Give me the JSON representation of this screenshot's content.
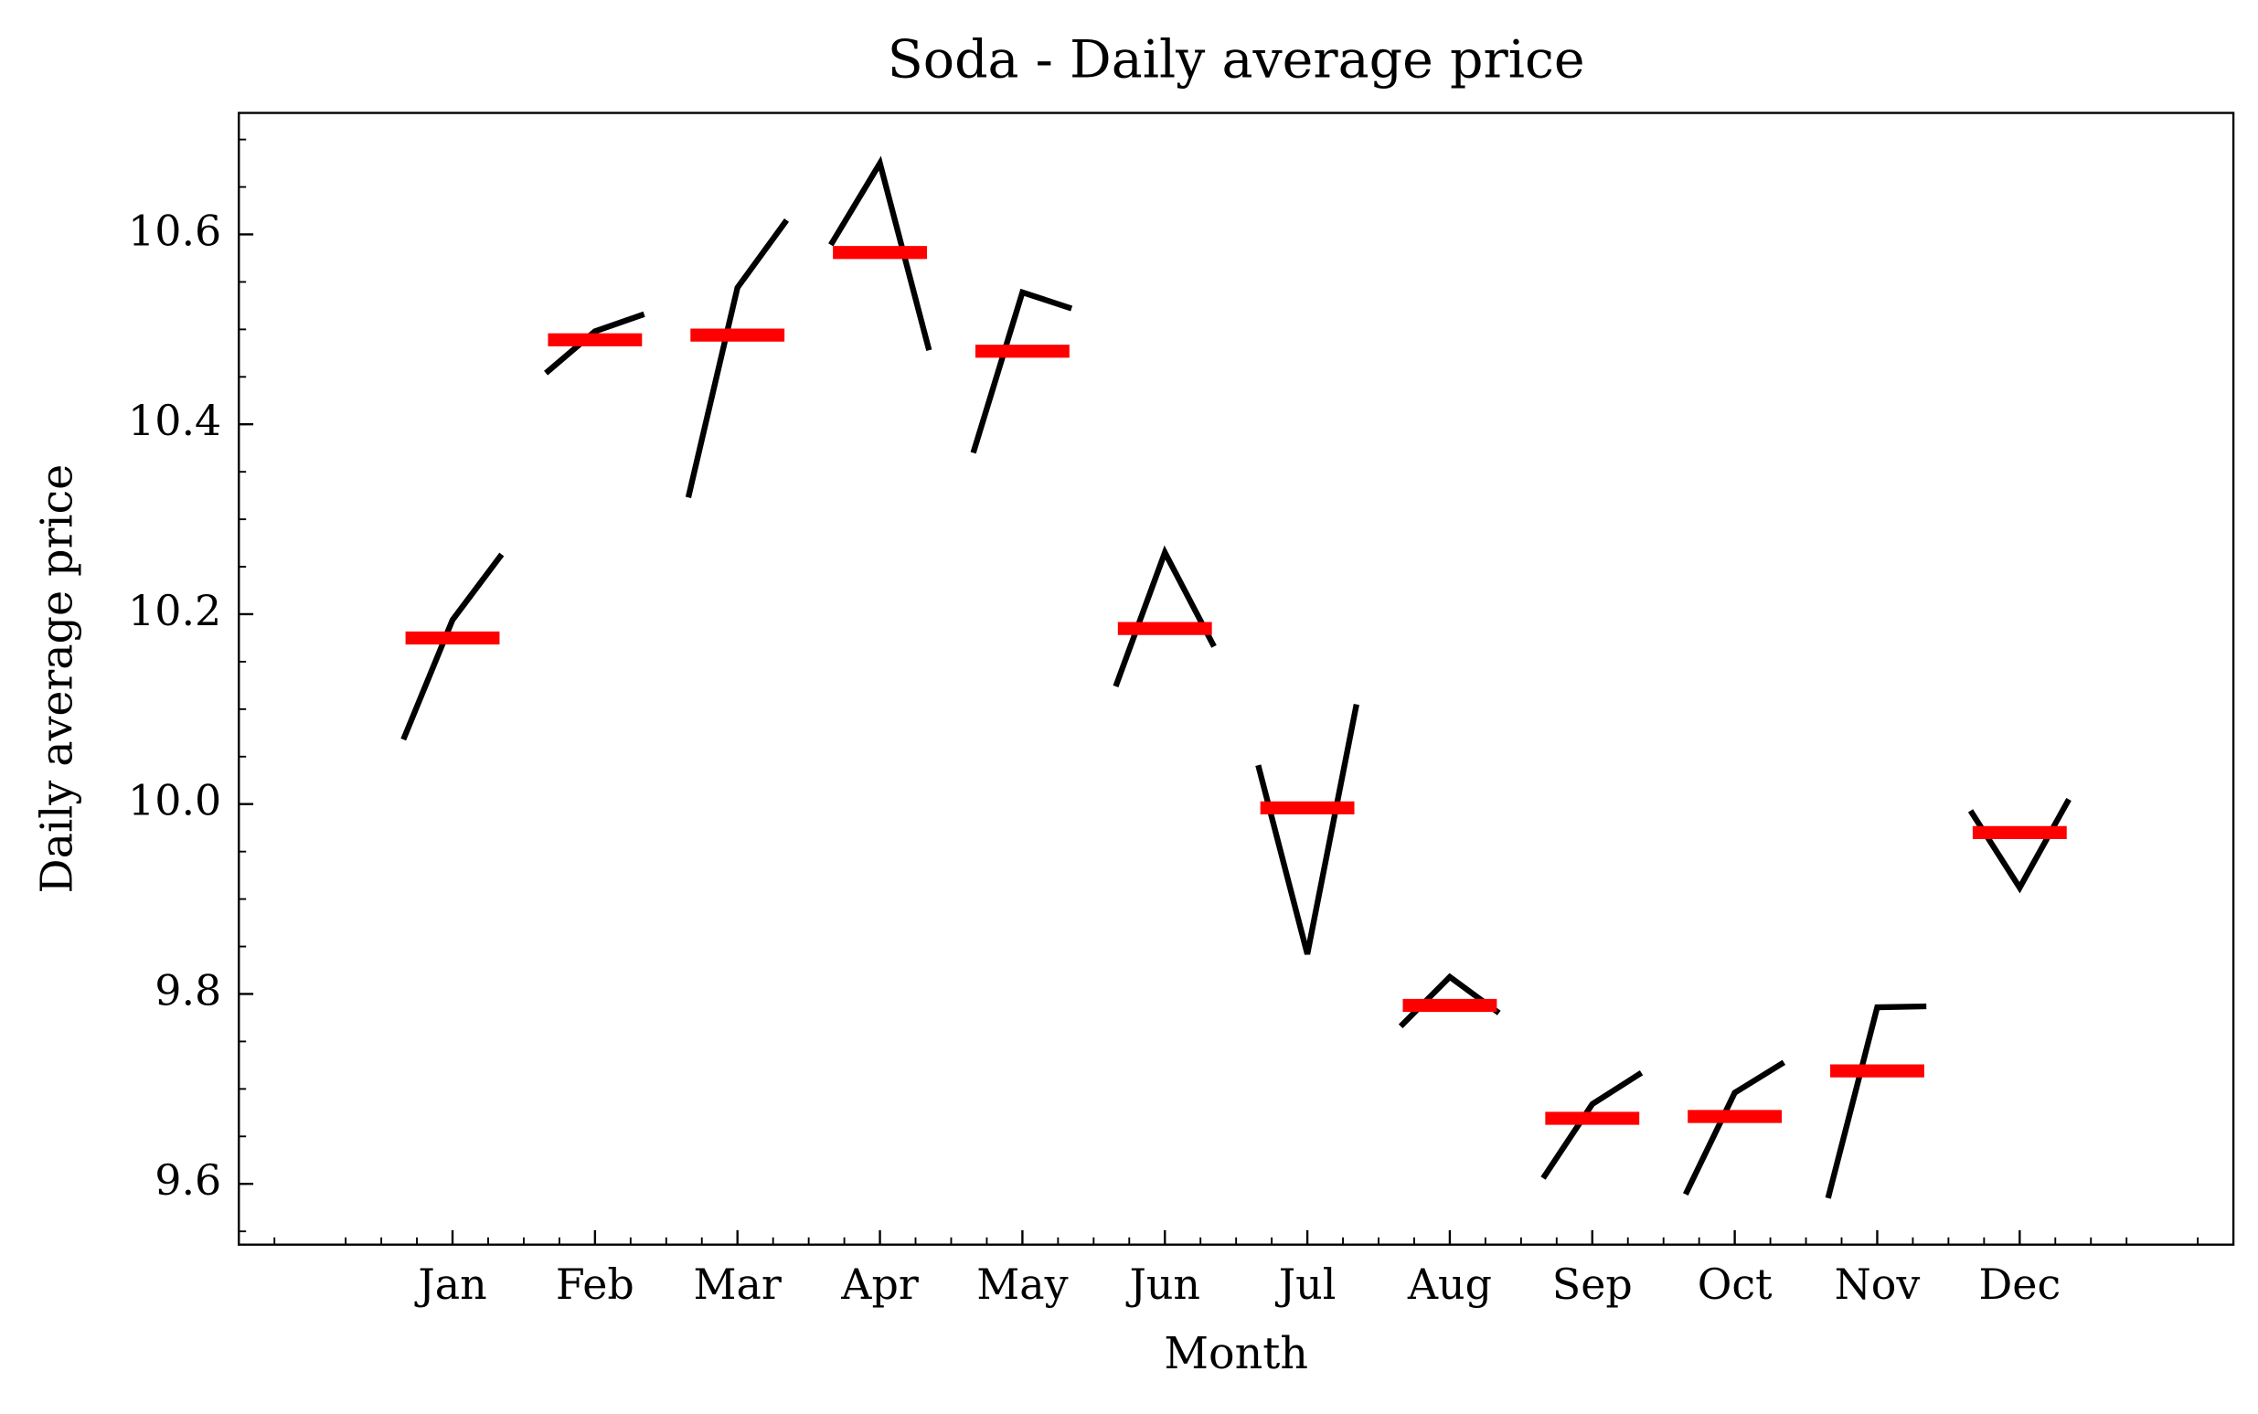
{
  "chart_data": {
    "type": "month_plot",
    "title": "Soda - Daily average price",
    "xlabel": "Month",
    "ylabel": "Daily average price",
    "categories": [
      "Jan",
      "Feb",
      "Mar",
      "Apr",
      "May",
      "Jun",
      "Jul",
      "Aug",
      "Sep",
      "Oct",
      "Nov",
      "Dec"
    ],
    "values": [
      [
        10.068,
        10.194,
        10.263
      ],
      [
        10.454,
        10.498,
        10.516
      ],
      [
        10.323,
        10.544,
        10.615
      ],
      [
        10.589,
        10.675,
        10.478
      ],
      [
        10.37,
        10.539,
        10.522
      ],
      [
        10.124,
        10.265,
        10.166
      ],
      [
        10.041,
        9.842,
        10.105
      ],
      [
        9.766,
        9.818,
        9.78
      ],
      [
        9.606,
        9.684,
        9.717
      ],
      [
        9.589,
        9.696,
        9.728
      ],
      [
        9.585,
        9.786,
        9.787
      ],
      [
        9.993,
        9.912,
        10.005
      ]
    ],
    "means": [
      10.175,
      10.489,
      10.494,
      10.581,
      10.477,
      10.185,
      9.996,
      9.788,
      9.669,
      9.671,
      9.719,
      9.97
    ],
    "color": "#000000",
    "mean_color": "#ff0000",
    "ylim": [
      9.536,
      10.728
    ],
    "yticks": [
      {
        "value": 9.6,
        "label": "9.6"
      },
      {
        "value": 9.8,
        "label": "9.8"
      },
      {
        "value": 10.0,
        "label": "10.0"
      },
      {
        "value": 10.2,
        "label": "10.2"
      },
      {
        "value": 10.4,
        "label": "10.4"
      },
      {
        "value": 10.6,
        "label": "10.6"
      }
    ],
    "grid": false
  }
}
